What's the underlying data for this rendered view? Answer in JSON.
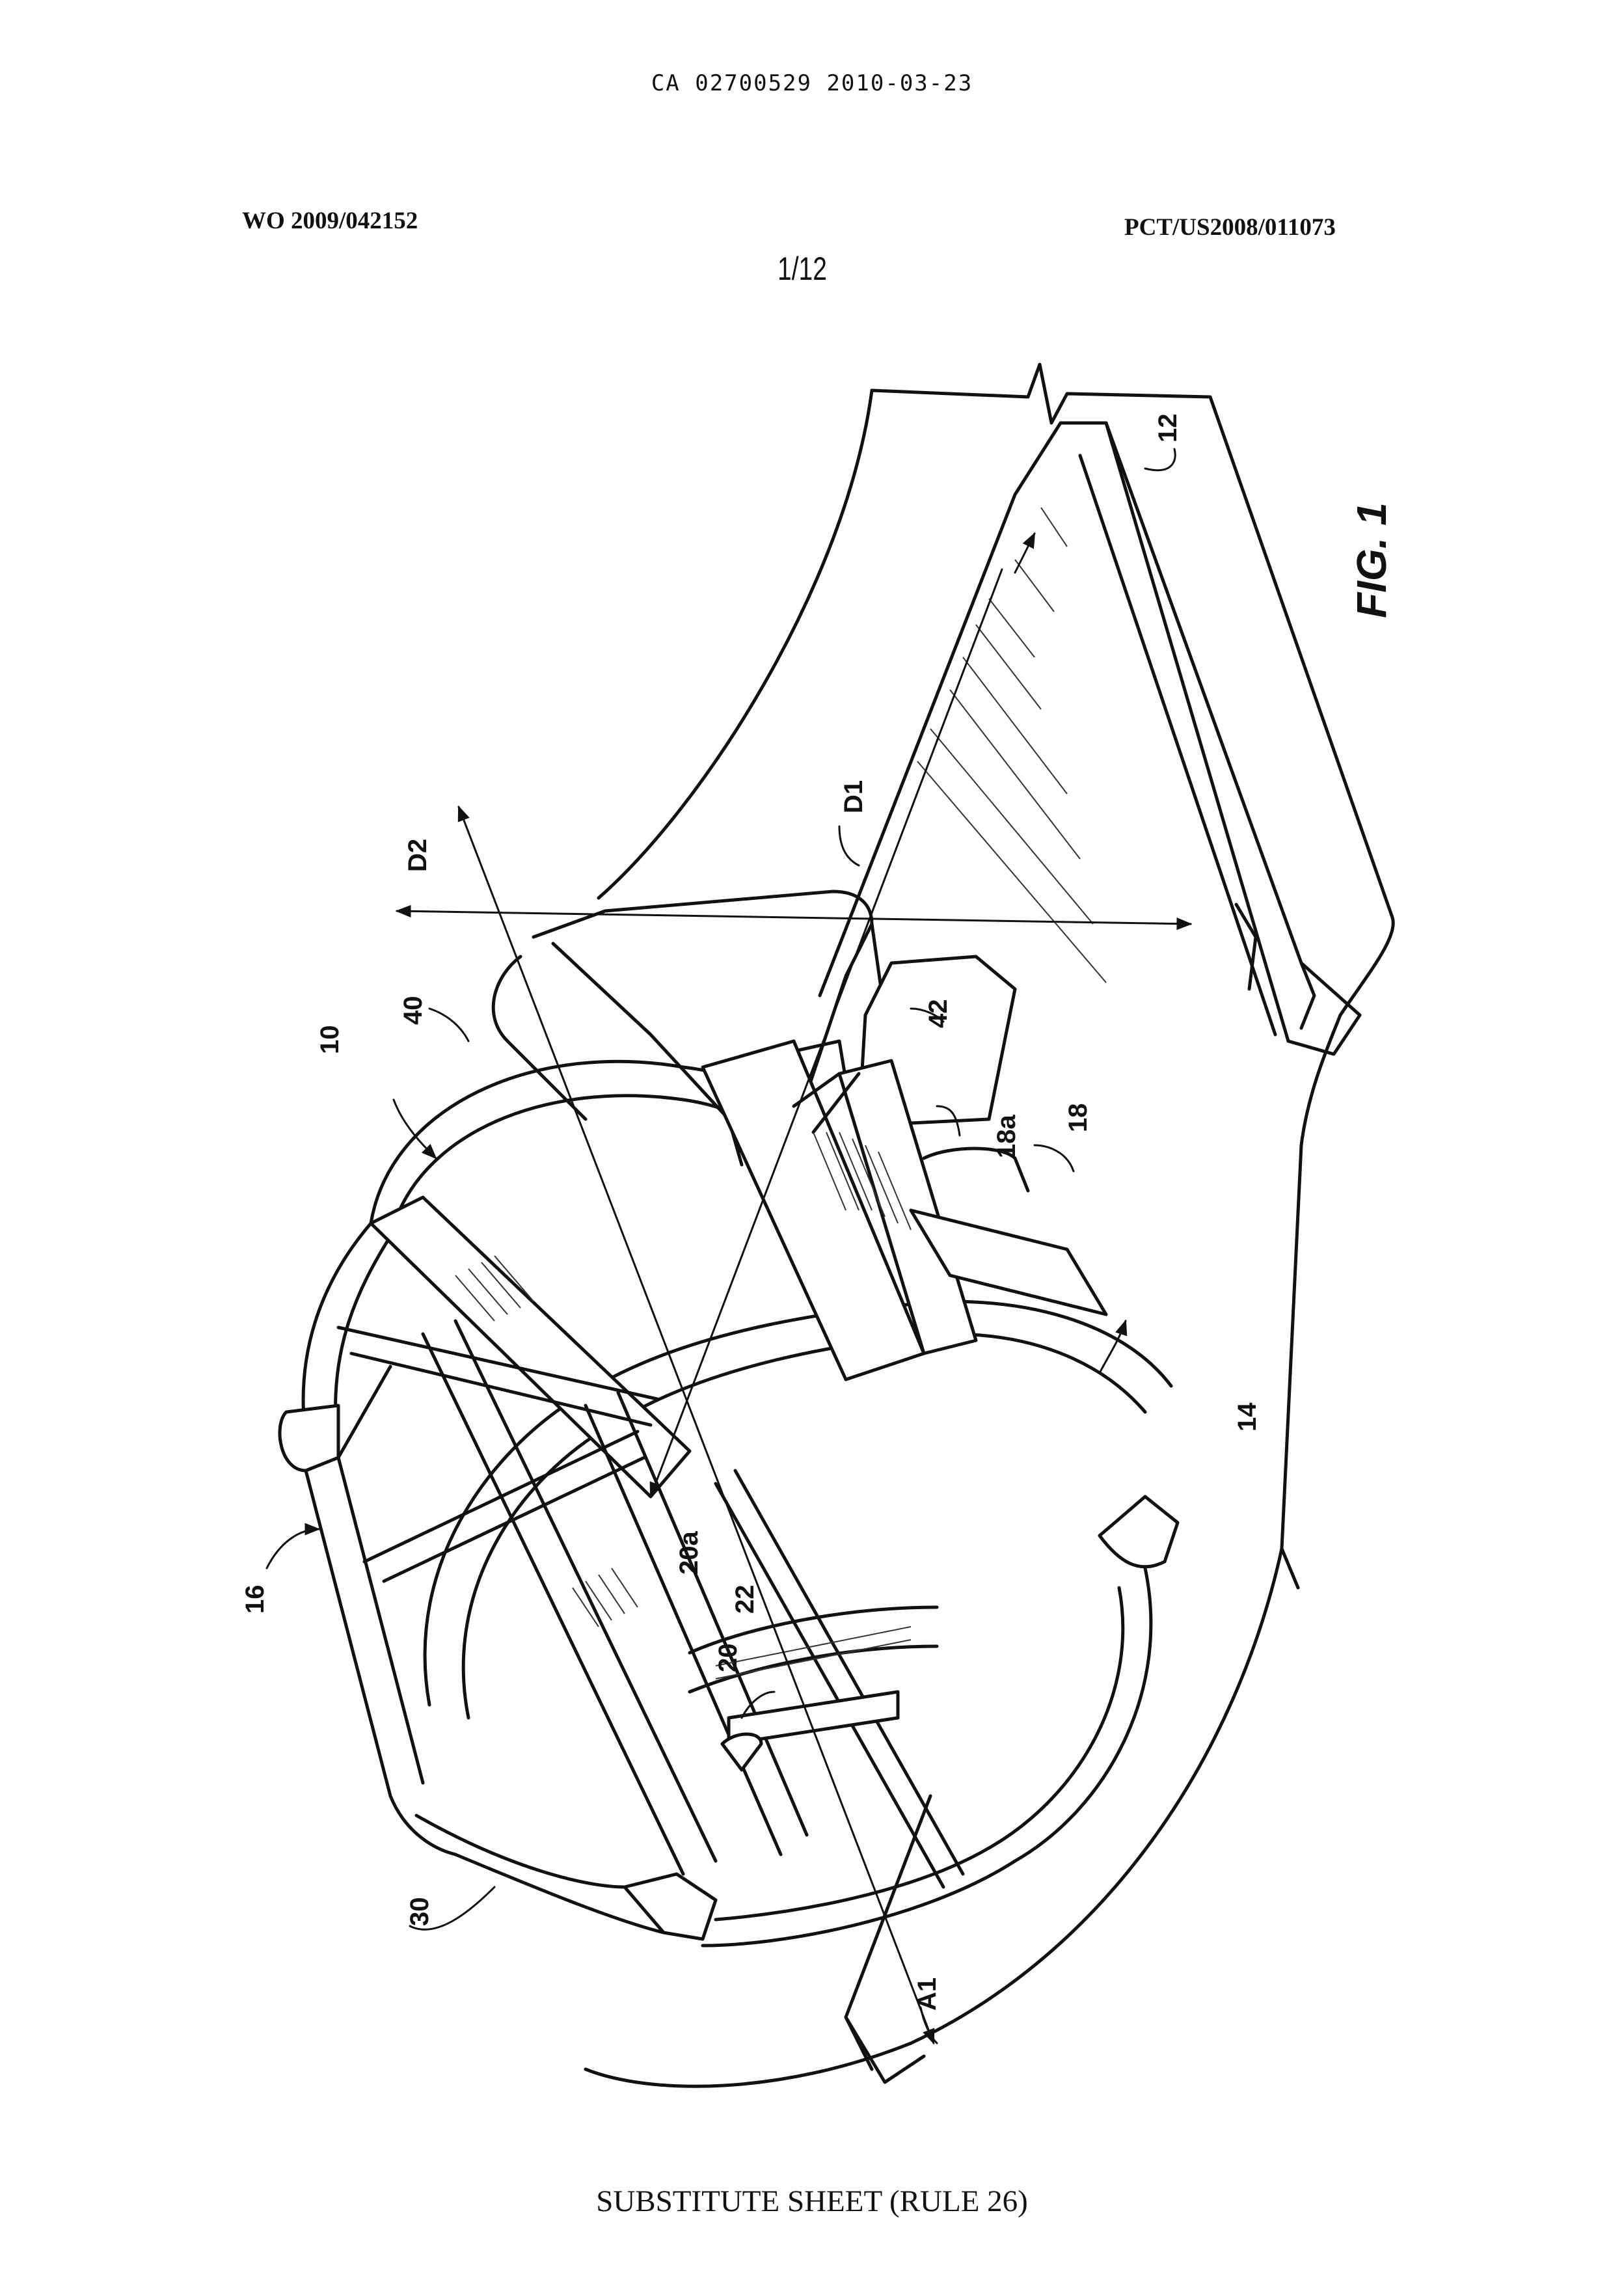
{
  "header": {
    "ca_line": "CA 02700529 2010-03-23",
    "publication_no": "WO 2009/042152",
    "application_no": "PCT/US2008/011073",
    "sheet_no": "1/12"
  },
  "figure": {
    "label": "FIG. 1",
    "reference_labels": {
      "r10": "10",
      "r12": "12",
      "r14": "14",
      "r16": "16",
      "r18": "18",
      "r18a": "18a",
      "r20": "20",
      "r20a": "20a",
      "r22": "22",
      "r30": "30",
      "r40": "40",
      "r42": "42",
      "rD1": "D1",
      "rD2": "D2",
      "rA1": "A1"
    }
  },
  "footer": {
    "text": "SUBSTITUTE SHEET (RULE 26)"
  }
}
